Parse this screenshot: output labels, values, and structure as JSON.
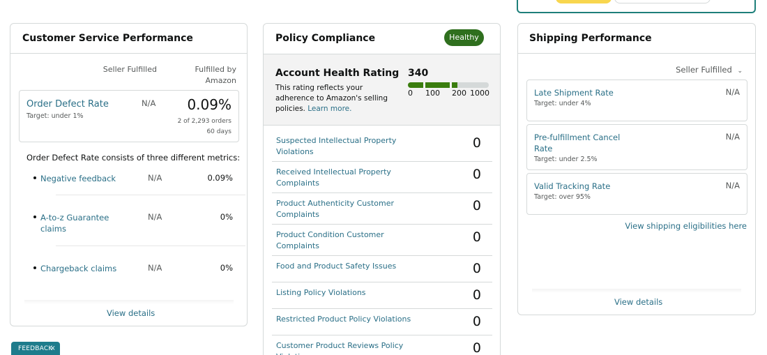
{
  "customer_service": {
    "title": "Customer Service Performance",
    "col_seller": "Seller Fulfilled",
    "col_amazon": "Fulfilled by Amazon",
    "odr": {
      "title": "Order Defect Rate",
      "target_label": "Target",
      "target_value": ": under 1%",
      "seller_value": "N/A",
      "amazon_value": "0.09%",
      "orders": "2 of 2,293 orders",
      "days": "60 days"
    },
    "consists_text": "Order Defect Rate consists of three different metrics:",
    "metrics": [
      {
        "name": "Negative feedback",
        "seller": "N/A",
        "amazon": "0.09%"
      },
      {
        "name": "A-to-z Guarantee claims",
        "seller": "N/A",
        "amazon": "0%"
      },
      {
        "name": "Chargeback claims",
        "seller": "N/A",
        "amazon": "0%"
      }
    ],
    "view_details": "View details"
  },
  "policy_compliance": {
    "title": "Policy Compliance",
    "badge": "Healthy",
    "ahr": {
      "title": "Account Health Rating",
      "score": "340",
      "desc": "This rating reflects your adherence to Amazon's selling policies.",
      "learn_more": "Learn more.",
      "ticks": [
        "0",
        "100",
        "200",
        "1000"
      ],
      "colors": {
        "good": "#3a7d0e",
        "empty": "#d5d9d9"
      }
    },
    "rows": [
      {
        "name": "Suspected Intellectual Property Violations",
        "value": "0"
      },
      {
        "name": "Received Intellectual Property Complaints",
        "value": "0"
      },
      {
        "name": "Product Authenticity Customer Complaints",
        "value": "0"
      },
      {
        "name": "Product Condition Customer Complaints",
        "value": "0"
      },
      {
        "name": "Food and Product Safety Issues",
        "value": "0"
      },
      {
        "name": "Listing Policy Violations",
        "value": "0"
      },
      {
        "name": "Restricted Product Policy Violations",
        "value": "0"
      },
      {
        "name": "Customer Product Reviews Policy Violations",
        "value": "0"
      }
    ]
  },
  "shipping": {
    "title": "Shipping Performance",
    "selector": "Seller Fulfilled",
    "selector_icon": "chevron-down-icon",
    "metrics": [
      {
        "name": "Late Shipment Rate",
        "target_label": "Target",
        "target_value": ": under 4%",
        "value": "N/A"
      },
      {
        "name": "Pre-fulfillment Cancel Rate",
        "target_label": "Target",
        "target_value": ": under 2.5%",
        "value": "N/A"
      },
      {
        "name": "Valid Tracking Rate",
        "target_label": "Target",
        "target_value": ": over 95%",
        "value": "N/A"
      }
    ],
    "eligibilities_link": "View shipping eligibilities here",
    "view_details": "View details"
  },
  "feedback": {
    "label": "FEEDBACK",
    "close": "×"
  }
}
